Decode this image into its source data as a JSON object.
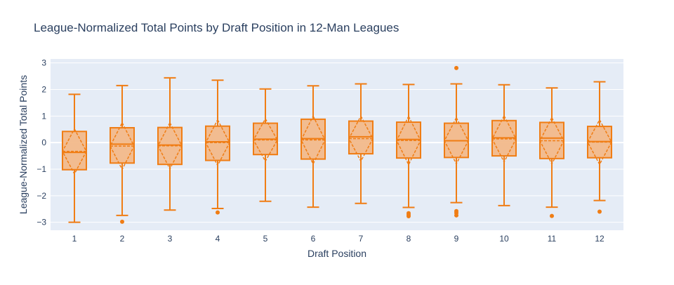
{
  "colors": {
    "plot_bg": "#e5ecf6",
    "grid": "#ffffff",
    "box_line": "#f07d14",
    "box_fill": "#f2b98a",
    "text": "#2a3f5f"
  },
  "chart_data": {
    "type": "box",
    "title": "League-Normalized Total Points by Draft Position in 12-Man Leagues",
    "xlabel": "Draft Position",
    "ylabel": "League-Normalized Total Points",
    "ylim": [
      -3.3,
      3.15
    ],
    "yticks": [
      -3,
      -2,
      -1,
      0,
      1,
      2,
      3
    ],
    "ytick_labels": [
      "−3",
      "−2",
      "−1",
      "0",
      "1",
      "2",
      "3"
    ],
    "grid": true,
    "legend": "none",
    "categories": [
      "1",
      "2",
      "3",
      "4",
      "5",
      "6",
      "7",
      "8",
      "9",
      "10",
      "11",
      "12"
    ],
    "boxes": [
      {
        "x": "1",
        "lower_fence": -3.0,
        "q1": -1.02,
        "median": -0.37,
        "q3": 0.42,
        "upper_fence": 1.82,
        "mean": -0.33,
        "sd": 0.85,
        "outliers": []
      },
      {
        "x": "2",
        "lower_fence": -2.74,
        "q1": -0.77,
        "median": -0.06,
        "q3": 0.56,
        "upper_fence": 2.15,
        "mean": -0.13,
        "sd": 0.88,
        "outliers": [
          -2.98
        ]
      },
      {
        "x": "3",
        "lower_fence": -2.54,
        "q1": -0.82,
        "median": -0.09,
        "q3": 0.57,
        "upper_fence": 2.44,
        "mean": -0.12,
        "sd": 0.87,
        "outliers": []
      },
      {
        "x": "4",
        "lower_fence": -2.48,
        "q1": -0.67,
        "median": 0.03,
        "q3": 0.62,
        "upper_fence": 2.35,
        "mean": 0.0,
        "sd": 0.86,
        "outliers": [
          -2.63
        ]
      },
      {
        "x": "5",
        "lower_fence": -2.21,
        "q1": -0.45,
        "median": 0.13,
        "q3": 0.73,
        "upper_fence": 2.02,
        "mean": 0.1,
        "sd": 0.8,
        "outliers": []
      },
      {
        "x": "6",
        "lower_fence": -2.43,
        "q1": -0.62,
        "median": 0.15,
        "q3": 0.88,
        "upper_fence": 2.14,
        "mean": 0.1,
        "sd": 0.9,
        "outliers": []
      },
      {
        "x": "7",
        "lower_fence": -2.29,
        "q1": -0.42,
        "median": 0.22,
        "q3": 0.81,
        "upper_fence": 2.21,
        "mean": 0.15,
        "sd": 0.85,
        "outliers": []
      },
      {
        "x": "8",
        "lower_fence": -2.44,
        "q1": -0.58,
        "median": 0.12,
        "q3": 0.77,
        "upper_fence": 2.19,
        "mean": 0.08,
        "sd": 0.91,
        "outliers": [
          -2.66,
          -2.72,
          -2.77
        ]
      },
      {
        "x": "9",
        "lower_fence": -2.26,
        "q1": -0.56,
        "median": 0.07,
        "q3": 0.73,
        "upper_fence": 2.21,
        "mean": 0.07,
        "sd": 0.87,
        "outliers": [
          2.81,
          -2.58,
          -2.65,
          -2.74
        ]
      },
      {
        "x": "10",
        "lower_fence": -2.37,
        "q1": -0.5,
        "median": 0.18,
        "q3": 0.83,
        "upper_fence": 2.18,
        "mean": 0.14,
        "sd": 0.87,
        "outliers": []
      },
      {
        "x": "11",
        "lower_fence": -2.43,
        "q1": -0.6,
        "median": 0.17,
        "q3": 0.76,
        "upper_fence": 2.06,
        "mean": 0.07,
        "sd": 0.87,
        "outliers": [
          -2.76
        ]
      },
      {
        "x": "12",
        "lower_fence": -2.18,
        "q1": -0.57,
        "median": 0.04,
        "q3": 0.61,
        "upper_fence": 2.29,
        "mean": 0.02,
        "sd": 0.84,
        "outliers": [
          -2.6
        ]
      }
    ]
  }
}
